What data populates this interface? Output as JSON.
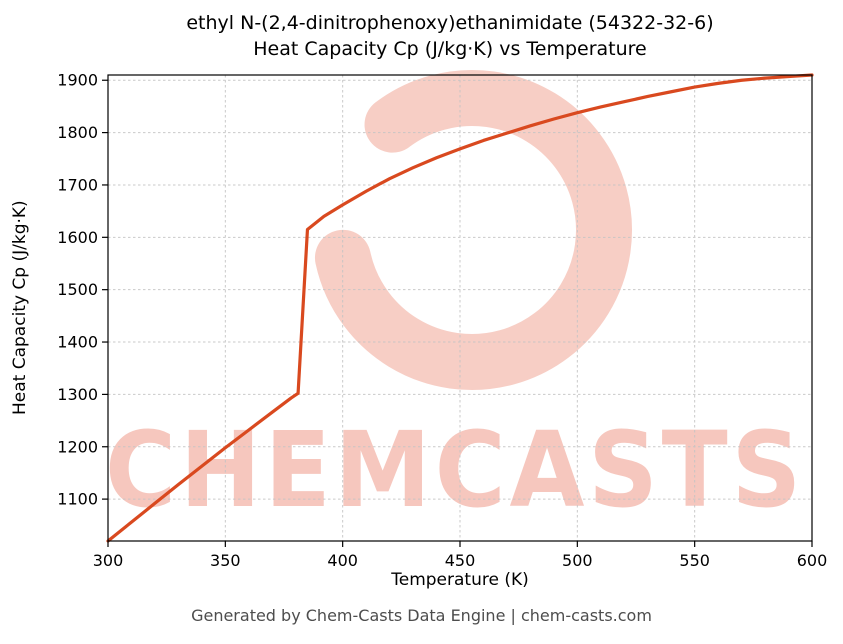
{
  "page": {
    "title_line1": "ethyl N-(2,4-dinitrophenoxy)ethanimidate (54322-32-6)",
    "title_line2": "Heat Capacity Cp (J/kg·K) vs Temperature",
    "watermark_text": "CHEMCASTS",
    "footer": "Generated by Chem-Casts Data Engine | chem-casts.com"
  },
  "chart_data": {
    "type": "line",
    "title": "ethyl N-(2,4-dinitrophenoxy)ethanimidate (54322-32-6) Heat Capacity Cp (J/kg·K) vs Temperature",
    "xlabel": "Temperature (K)",
    "ylabel": "Heat Capacity Cp (J/kg·K)",
    "xlim": [
      300,
      600
    ],
    "ylim": [
      1020,
      1910
    ],
    "x_ticks": [
      300,
      350,
      400,
      450,
      500,
      550,
      600
    ],
    "y_ticks": [
      1100,
      1200,
      1300,
      1400,
      1500,
      1600,
      1700,
      1800,
      1900
    ],
    "grid": true,
    "legend": "none",
    "line_color": "#d9491f",
    "watermark_color": "#e2492a",
    "series": [
      {
        "name": "Heat Capacity Cp",
        "x": [
          300,
          310,
          320,
          330,
          340,
          350,
          360,
          370,
          378,
          381,
          385,
          392,
          400,
          410,
          420,
          430,
          440,
          450,
          460,
          470,
          480,
          490,
          500,
          510,
          520,
          530,
          540,
          550,
          560,
          570,
          580,
          590,
          600
        ],
        "y": [
          1020,
          1056,
          1092,
          1128,
          1163,
          1198,
          1232,
          1266,
          1293,
          1302,
          1615,
          1640,
          1662,
          1688,
          1712,
          1733,
          1752,
          1769,
          1785,
          1799,
          1813,
          1826,
          1838,
          1849,
          1859,
          1869,
          1878,
          1887,
          1894,
          1900,
          1904,
          1907,
          1910
        ]
      }
    ]
  }
}
